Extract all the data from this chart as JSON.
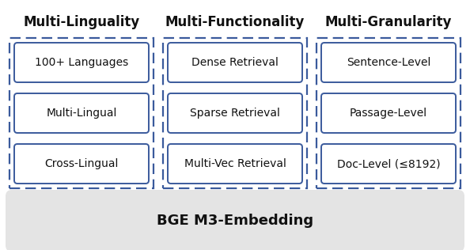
{
  "title": "BGE M3-Embedding",
  "columns": [
    {
      "header": "Multi-Linguality",
      "items": [
        "100+ Languages",
        "Multi-Lingual",
        "Cross-Lingual"
      ]
    },
    {
      "header": "Multi-Functionality",
      "items": [
        "Dense Retrieval",
        "Sparse Retrieval",
        "Multi-Vec Retrieval"
      ]
    },
    {
      "header": "Multi-Granularity",
      "items": [
        "Sentence-Level",
        "Passage-Level",
        "Doc-Level (≤8192)"
      ]
    }
  ],
  "bg_color": "#ffffff",
  "bottom_bar_color": "#e4e4e4",
  "outer_box_edge_color": "#3a5a9c",
  "inner_box_edge_color": "#3a5a9c",
  "header_fontsize": 12,
  "item_fontsize": 10,
  "title_fontsize": 13,
  "fig_width": 5.94,
  "fig_height": 3.16
}
